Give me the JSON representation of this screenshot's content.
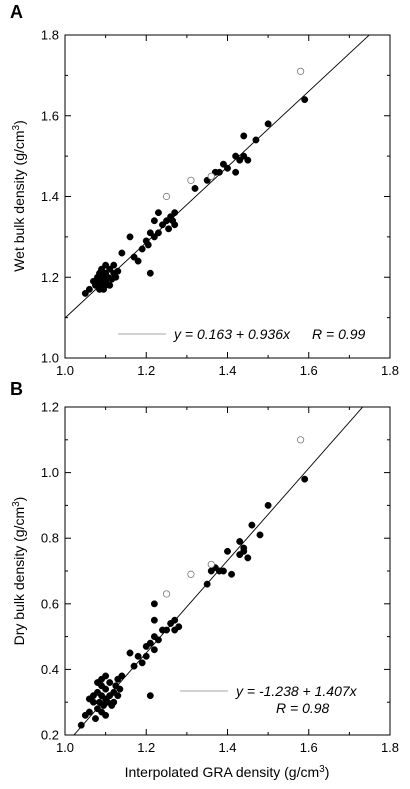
{
  "chart_data": [
    {
      "type": "scatter",
      "panel_label": "A",
      "xlabel": "",
      "ylabel_main": "Wet bulk density (g/cm",
      "ylabel_sup": "3",
      "ylabel_end": ")",
      "xlim": [
        1.0,
        1.8
      ],
      "ylim": [
        1.0,
        1.8
      ],
      "xticks": [
        "1.0",
        "1.2",
        "1.4",
        "1.6",
        "1.8"
      ],
      "yticks": [
        "1.0",
        "1.2",
        "1.4",
        "1.6",
        "1.8"
      ],
      "regression": {
        "intercept": 0.163,
        "slope": 0.936
      },
      "equation_text": "y = 0.163 + 0.936x",
      "r_text": "R = 0.99",
      "series": [
        {
          "marker": "filled",
          "points": [
            [
              1.05,
              1.16
            ],
            [
              1.06,
              1.17
            ],
            [
              1.07,
              1.19
            ],
            [
              1.075,
              1.18
            ],
            [
              1.08,
              1.185
            ],
            [
              1.08,
              1.2
            ],
            [
              1.085,
              1.17
            ],
            [
              1.09,
              1.175
            ],
            [
              1.09,
              1.19
            ],
            [
              1.095,
              1.2
            ],
            [
              1.1,
              1.18
            ],
            [
              1.1,
              1.19
            ],
            [
              1.1,
              1.21
            ],
            [
              1.105,
              1.2
            ],
            [
              1.11,
              1.22
            ],
            [
              1.115,
              1.195
            ],
            [
              1.12,
              1.21
            ],
            [
              1.125,
              1.2
            ],
            [
              1.13,
              1.215
            ],
            [
              1.09,
              1.22
            ],
            [
              1.1,
              1.23
            ],
            [
              1.085,
              1.21
            ],
            [
              1.095,
              1.17
            ],
            [
              1.12,
              1.23
            ],
            [
              1.11,
              1.18
            ],
            [
              1.14,
              1.26
            ],
            [
              1.16,
              1.3
            ],
            [
              1.17,
              1.25
            ],
            [
              1.18,
              1.24
            ],
            [
              1.19,
              1.27
            ],
            [
              1.2,
              1.29
            ],
            [
              1.205,
              1.28
            ],
            [
              1.21,
              1.31
            ],
            [
              1.22,
              1.3
            ],
            [
              1.21,
              1.21
            ],
            [
              1.23,
              1.31
            ],
            [
              1.24,
              1.33
            ],
            [
              1.25,
              1.34
            ],
            [
              1.26,
              1.35
            ],
            [
              1.27,
              1.33
            ],
            [
              1.255,
              1.32
            ],
            [
              1.265,
              1.34
            ],
            [
              1.27,
              1.36
            ],
            [
              1.23,
              1.36
            ],
            [
              1.22,
              1.34
            ],
            [
              1.32,
              1.42
            ],
            [
              1.35,
              1.44
            ],
            [
              1.37,
              1.46
            ],
            [
              1.38,
              1.46
            ],
            [
              1.39,
              1.48
            ],
            [
              1.4,
              1.47
            ],
            [
              1.42,
              1.5
            ],
            [
              1.43,
              1.49
            ],
            [
              1.44,
              1.5
            ],
            [
              1.44,
              1.55
            ],
            [
              1.42,
              1.46
            ],
            [
              1.45,
              1.49
            ],
            [
              1.47,
              1.54
            ],
            [
              1.5,
              1.58
            ],
            [
              1.59,
              1.64
            ]
          ]
        },
        {
          "marker": "open",
          "points": [
            [
              1.25,
              1.4
            ],
            [
              1.31,
              1.44
            ],
            [
              1.36,
              1.45
            ],
            [
              1.58,
              1.71
            ]
          ]
        }
      ]
    },
    {
      "type": "scatter",
      "panel_label": "B",
      "xlabel_main": "Interpolated GRA density (g/cm",
      "xlabel_sup": "3",
      "xlabel_end": ")",
      "ylabel_main": "Dry bulk density (g/cm",
      "ylabel_sup": "3",
      "ylabel_end": ")",
      "xlim": [
        1.0,
        1.8
      ],
      "ylim": [
        0.2,
        1.2
      ],
      "xticks": [
        "1.0",
        "1.2",
        "1.4",
        "1.6",
        "1.8"
      ],
      "yticks": [
        "0.2",
        "0.4",
        "0.6",
        "0.8",
        "1.0",
        "1.2"
      ],
      "regression": {
        "intercept": -1.238,
        "slope": 1.407
      },
      "equation_text": "y = -1.238 + 1.407x",
      "r_text": "R = 0.98",
      "series": [
        {
          "marker": "filled",
          "points": [
            [
              1.04,
              0.23
            ],
            [
              1.05,
              0.26
            ],
            [
              1.06,
              0.27
            ],
            [
              1.07,
              0.3
            ],
            [
              1.07,
              0.32
            ],
            [
              1.075,
              0.25
            ],
            [
              1.08,
              0.28
            ],
            [
              1.08,
              0.33
            ],
            [
              1.085,
              0.3
            ],
            [
              1.09,
              0.27
            ],
            [
              1.09,
              0.32
            ],
            [
              1.09,
              0.35
            ],
            [
              1.095,
              0.29
            ],
            [
              1.1,
              0.31
            ],
            [
              1.1,
              0.26
            ],
            [
              1.1,
              0.34
            ],
            [
              1.105,
              0.3
            ],
            [
              1.11,
              0.32
            ],
            [
              1.11,
              0.36
            ],
            [
              1.115,
              0.29
            ],
            [
              1.12,
              0.33
            ],
            [
              1.12,
              0.3
            ],
            [
              1.125,
              0.35
            ],
            [
              1.13,
              0.32
            ],
            [
              1.13,
              0.37
            ],
            [
              1.135,
              0.34
            ],
            [
              1.14,
              0.38
            ],
            [
              1.1,
              0.38
            ],
            [
              1.09,
              0.37
            ],
            [
              1.08,
              0.36
            ],
            [
              1.06,
              0.31
            ],
            [
              1.16,
              0.45
            ],
            [
              1.17,
              0.41
            ],
            [
              1.18,
              0.44
            ],
            [
              1.19,
              0.42
            ],
            [
              1.2,
              0.44
            ],
            [
              1.2,
              0.47
            ],
            [
              1.21,
              0.48
            ],
            [
              1.22,
              0.46
            ],
            [
              1.22,
              0.5
            ],
            [
              1.23,
              0.49
            ],
            [
              1.21,
              0.32
            ],
            [
              1.24,
              0.52
            ],
            [
              1.25,
              0.52
            ],
            [
              1.26,
              0.54
            ],
            [
              1.27,
              0.55
            ],
            [
              1.27,
              0.52
            ],
            [
              1.28,
              0.53
            ],
            [
              1.22,
              0.6
            ],
            [
              1.22,
              0.55
            ],
            [
              1.35,
              0.66
            ],
            [
              1.36,
              0.7
            ],
            [
              1.37,
              0.71
            ],
            [
              1.38,
              0.7
            ],
            [
              1.39,
              0.7
            ],
            [
              1.4,
              0.76
            ],
            [
              1.41,
              0.69
            ],
            [
              1.43,
              0.75
            ],
            [
              1.43,
              0.79
            ],
            [
              1.44,
              0.76
            ],
            [
              1.44,
              0.77
            ],
            [
              1.45,
              0.74
            ],
            [
              1.46,
              0.84
            ],
            [
              1.48,
              0.81
            ],
            [
              1.5,
              0.9
            ],
            [
              1.59,
              0.98
            ]
          ]
        },
        {
          "marker": "open",
          "points": [
            [
              1.25,
              0.63
            ],
            [
              1.31,
              0.69
            ],
            [
              1.36,
              0.72
            ],
            [
              1.58,
              1.1
            ]
          ]
        }
      ]
    }
  ]
}
